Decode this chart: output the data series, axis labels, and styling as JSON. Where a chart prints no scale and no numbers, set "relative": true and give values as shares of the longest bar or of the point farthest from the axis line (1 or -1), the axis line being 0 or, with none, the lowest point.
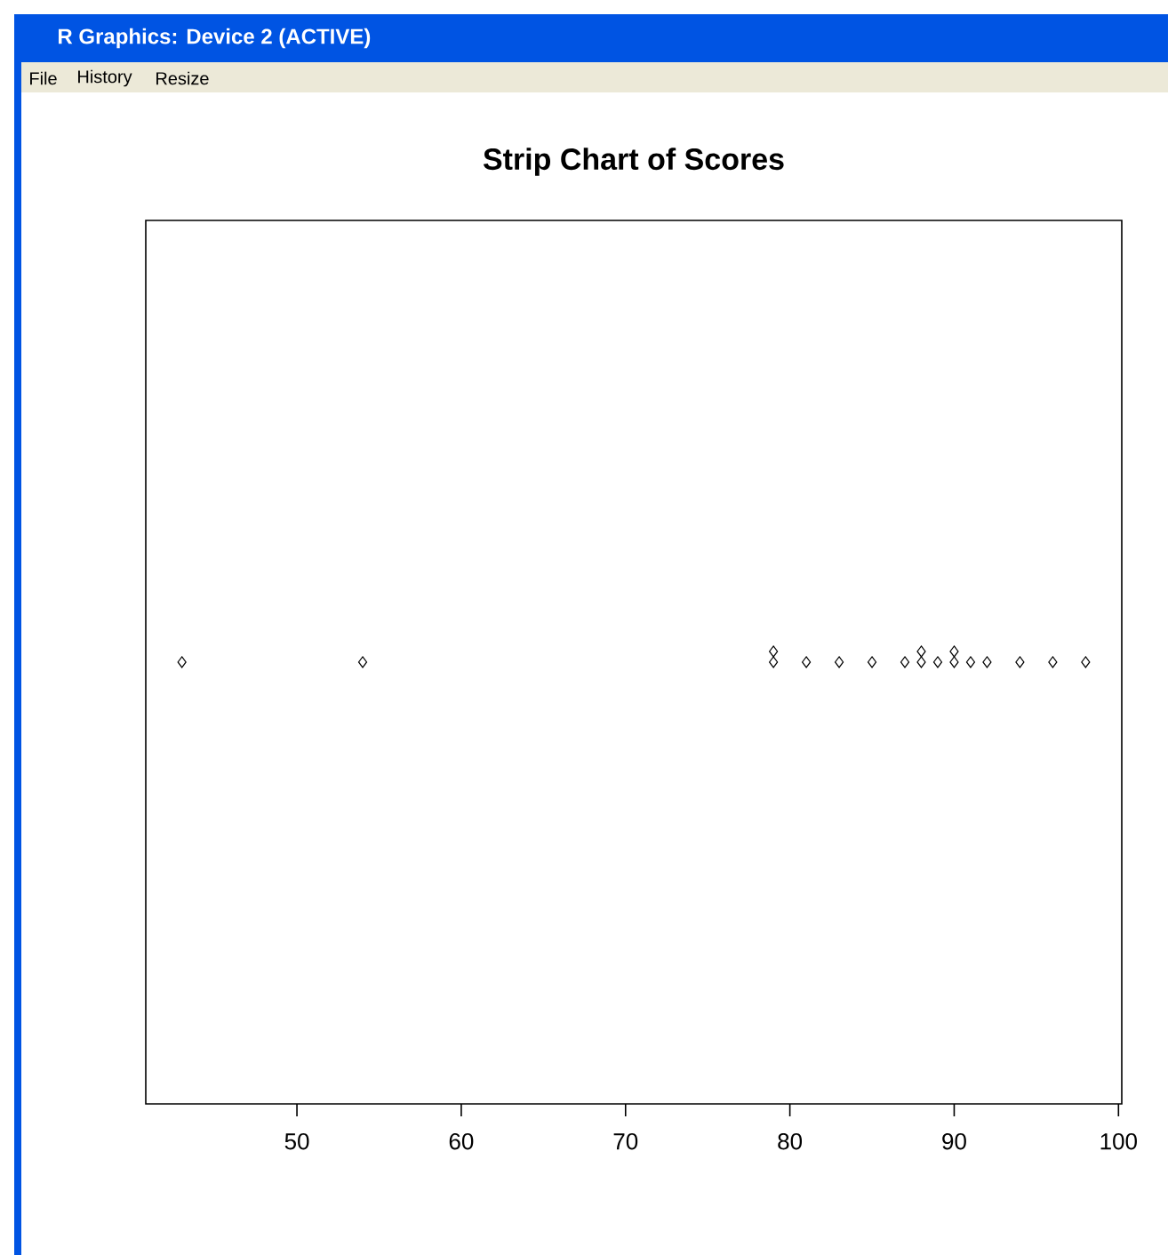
{
  "chart_data": {
    "type": "scatter",
    "title": "Strip Chart of Scores",
    "annotations": [
      "R Graphics: Device 2 (ACTIVE)",
      "File",
      "History",
      "Resize"
    ],
    "x": [
      43,
      54,
      79,
      79,
      81,
      83,
      85,
      87,
      88,
      88,
      89,
      90,
      90,
      91,
      92,
      94,
      96,
      98
    ],
    "values": [
      0,
      0,
      0,
      1,
      0,
      0,
      0,
      0,
      0,
      1,
      0,
      0,
      1,
      0,
      0,
      0,
      0,
      0
    ],
    "relative": true,
    "color": "#000000",
    "marker": "diamond",
    "xlim": [
      40.8,
      100.2
    ],
    "xticks": [
      50,
      60,
      70,
      80,
      90,
      100
    ],
    "tick_labels": "x"
  }
}
